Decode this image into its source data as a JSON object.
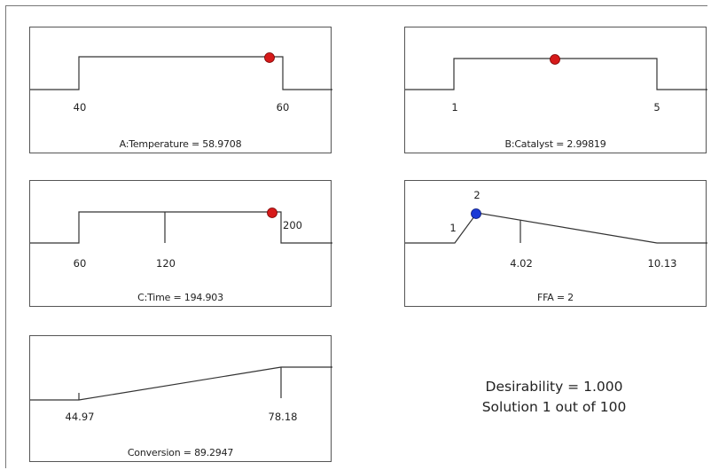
{
  "panels": [
    {
      "caption": "A:Temperature = 58.9708",
      "ticks": [
        "40",
        "60"
      ],
      "value": 58.9708,
      "range": [
        40,
        60
      ],
      "marker_color": "#d61a1a"
    },
    {
      "caption": "B:Catalyst = 2.99819",
      "ticks": [
        "1",
        "5"
      ],
      "value": 2.99819,
      "range": [
        1,
        5
      ],
      "marker_color": "#d61a1a"
    },
    {
      "caption": "C:Time = 194.903",
      "ticks": [
        "60",
        "120",
        "200"
      ],
      "value": 194.903,
      "range": [
        60,
        200
      ],
      "marker_color": "#d61a1a"
    },
    {
      "caption": "FFA = 2",
      "ticks": [
        "1",
        "2",
        "4.02",
        "10.13"
      ],
      "value": 2,
      "marker_color": "#1a3ad6"
    },
    {
      "caption": "Conversion = 89.2947",
      "ticks": [
        "44.97",
        "78.18"
      ],
      "value": 89.2947
    }
  ],
  "summary": {
    "desirability": "Desirability = 1.000",
    "solution": "Solution 1 out of 100"
  }
}
